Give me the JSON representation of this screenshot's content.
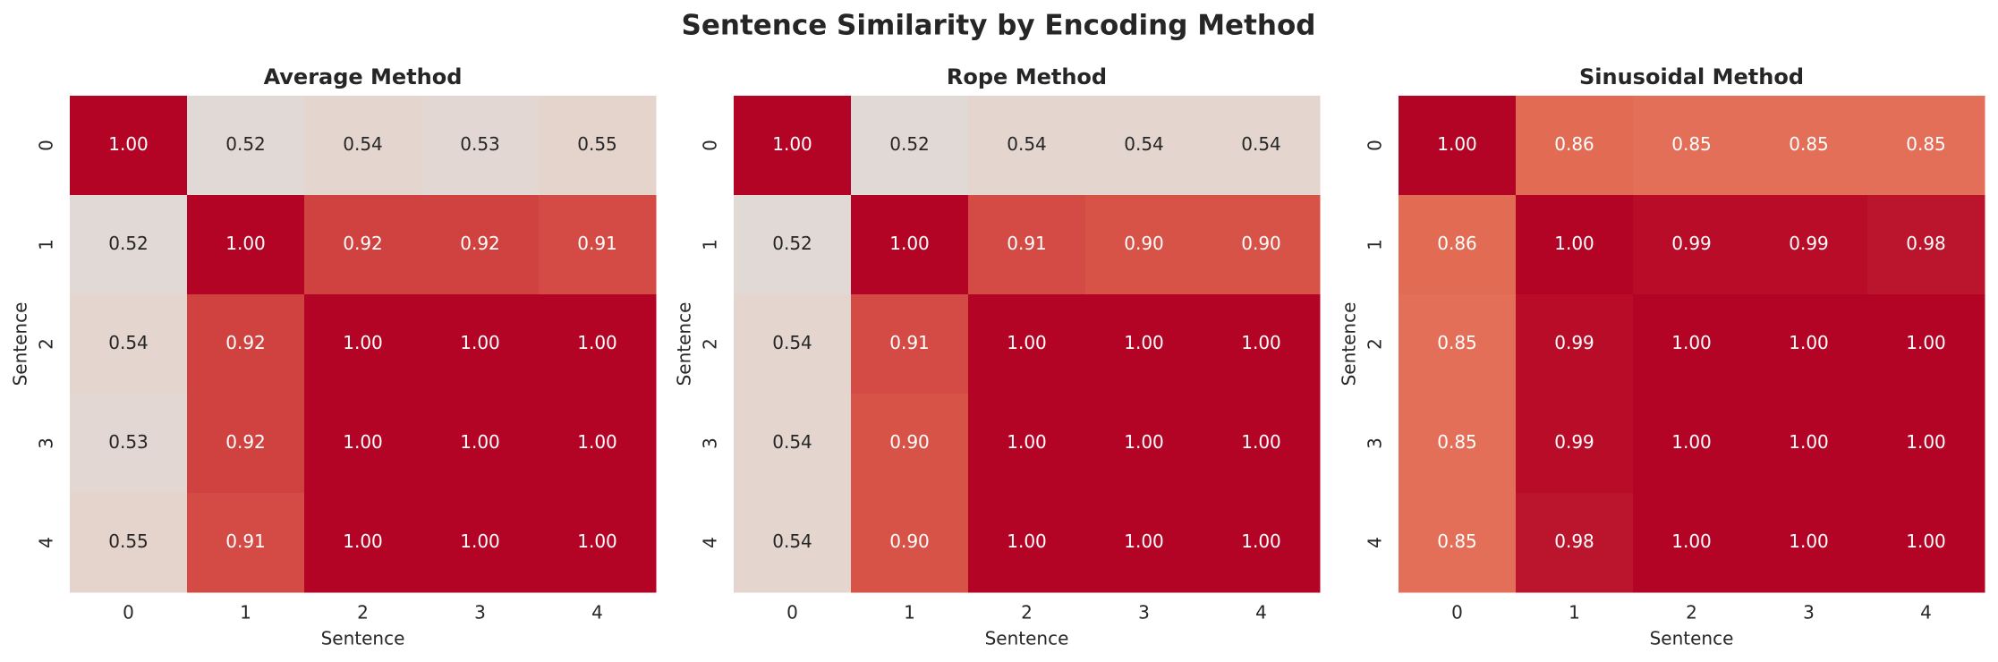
{
  "title": "Sentence Similarity by Encoding Method",
  "chart_data": [
    {
      "type": "heatmap",
      "title": "Average Method",
      "xlabel": "Sentence",
      "ylabel": "Sentence",
      "x": [
        0,
        1,
        2,
        3,
        4
      ],
      "y": [
        0,
        1,
        2,
        3,
        4
      ],
      "colormap": "coolwarm",
      "clim": [
        0,
        1
      ],
      "values": [
        [
          1,
          0.52,
          0.54,
          0.53,
          0.55
        ],
        [
          0.52,
          1,
          0.92,
          0.92,
          0.91
        ],
        [
          0.54,
          0.92,
          1,
          1,
          1
        ],
        [
          0.53,
          0.92,
          1,
          1,
          1
        ],
        [
          0.55,
          0.91,
          1,
          1,
          1
        ]
      ],
      "value_labels": [
        [
          "1.00",
          "0.52",
          "0.54",
          "0.53",
          "0.55"
        ],
        [
          "0.52",
          "1.00",
          "0.92",
          "0.92",
          "0.91"
        ],
        [
          "0.54",
          "0.92",
          "1.00",
          "1.00",
          "1.00"
        ],
        [
          "0.53",
          "0.92",
          "1.00",
          "1.00",
          "1.00"
        ],
        [
          "0.55",
          "0.91",
          "1.00",
          "1.00",
          "1.00"
        ]
      ]
    },
    {
      "type": "heatmap",
      "title": "Rope Method",
      "xlabel": "Sentence",
      "ylabel": "Sentence",
      "x": [
        0,
        1,
        2,
        3,
        4
      ],
      "y": [
        0,
        1,
        2,
        3,
        4
      ],
      "colormap": "coolwarm",
      "clim": [
        0,
        1
      ],
      "values": [
        [
          1,
          0.52,
          0.54,
          0.54,
          0.54
        ],
        [
          0.52,
          1,
          0.91,
          0.9,
          0.9
        ],
        [
          0.54,
          0.91,
          1,
          1,
          1
        ],
        [
          0.54,
          0.9,
          1,
          1,
          1
        ],
        [
          0.54,
          0.9,
          1,
          1,
          1
        ]
      ],
      "value_labels": [
        [
          "1.00",
          "0.52",
          "0.54",
          "0.54",
          "0.54"
        ],
        [
          "0.52",
          "1.00",
          "0.91",
          "0.90",
          "0.90"
        ],
        [
          "0.54",
          "0.91",
          "1.00",
          "1.00",
          "1.00"
        ],
        [
          "0.54",
          "0.90",
          "1.00",
          "1.00",
          "1.00"
        ],
        [
          "0.54",
          "0.90",
          "1.00",
          "1.00",
          "1.00"
        ]
      ]
    },
    {
      "type": "heatmap",
      "title": "Sinusoidal Method",
      "xlabel": "Sentence",
      "ylabel": "Sentence",
      "x": [
        0,
        1,
        2,
        3,
        4
      ],
      "y": [
        0,
        1,
        2,
        3,
        4
      ],
      "colormap": "coolwarm",
      "clim": [
        0,
        1
      ],
      "values": [
        [
          1,
          0.86,
          0.85,
          0.85,
          0.85
        ],
        [
          0.86,
          1,
          0.99,
          0.99,
          0.98
        ],
        [
          0.85,
          0.99,
          1,
          1,
          1
        ],
        [
          0.85,
          0.99,
          1,
          1,
          1
        ],
        [
          0.85,
          0.98,
          1,
          1,
          1
        ]
      ],
      "value_labels": [
        [
          "1.00",
          "0.86",
          "0.85",
          "0.85",
          "0.85"
        ],
        [
          "0.86",
          "1.00",
          "0.99",
          "0.99",
          "0.98"
        ],
        [
          "0.85",
          "0.99",
          "1.00",
          "1.00",
          "1.00"
        ],
        [
          "0.85",
          "0.99",
          "1.00",
          "1.00",
          "1.00"
        ],
        [
          "0.85",
          "0.98",
          "1.00",
          "1.00",
          "1.00"
        ]
      ]
    }
  ]
}
